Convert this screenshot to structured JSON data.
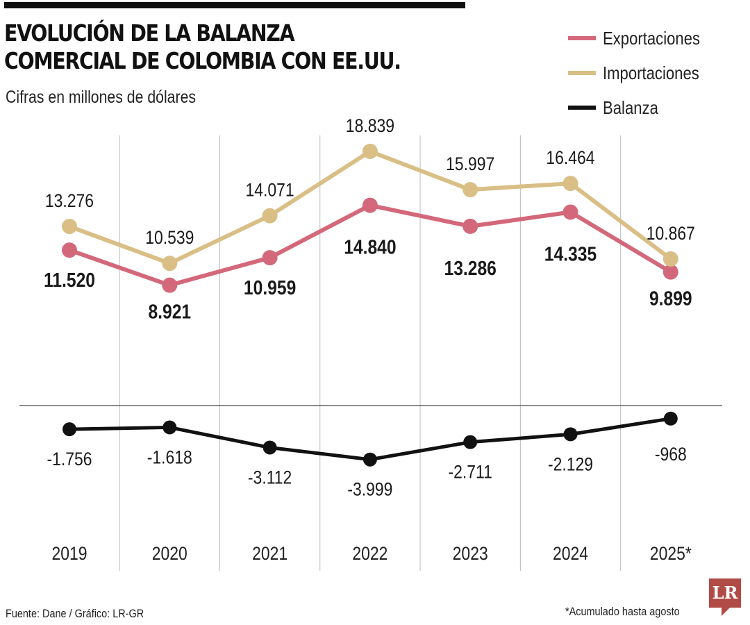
{
  "chart_data": {
    "type": "line",
    "title": "EVOLUCIÓN DE LA BALANZA COMERCIAL DE COLOMBIA CON EE.UU.",
    "subtitle": "Cifras en millones de dólares",
    "categories": [
      "2019",
      "2020",
      "2021",
      "2022",
      "2023",
      "2024",
      "2025*"
    ],
    "series": [
      {
        "name": "Exportaciones",
        "color": "#d4687b",
        "values": [
          11520,
          8921,
          10959,
          14840,
          13286,
          14335,
          9899
        ],
        "labels": [
          "11.520",
          "8.921",
          "10.959",
          "14.840",
          "13.286",
          "14.335",
          "9.899"
        ]
      },
      {
        "name": "Importaciones",
        "color": "#d9bf86",
        "values": [
          13276,
          10539,
          14071,
          18839,
          15997,
          16464,
          10867
        ],
        "labels": [
          "13.276",
          "10.539",
          "14.071",
          "18.839",
          "15.997",
          "16.464",
          "10.867"
        ]
      },
      {
        "name": "Balanza",
        "color": "#111111",
        "values": [
          -1756,
          -1618,
          -3112,
          -3999,
          -2711,
          -2129,
          -968
        ],
        "labels": [
          "-1.756",
          "-1.618",
          "-3.112",
          "-3.999",
          "-2.711",
          "-2.129",
          "-968"
        ]
      }
    ],
    "legend_position": "top-right",
    "grid": "vertical lines between years",
    "source": "Fuente: Dane / Gráfico: LR-GR",
    "note": "*Acumulado hasta agosto",
    "logo": "LR"
  }
}
